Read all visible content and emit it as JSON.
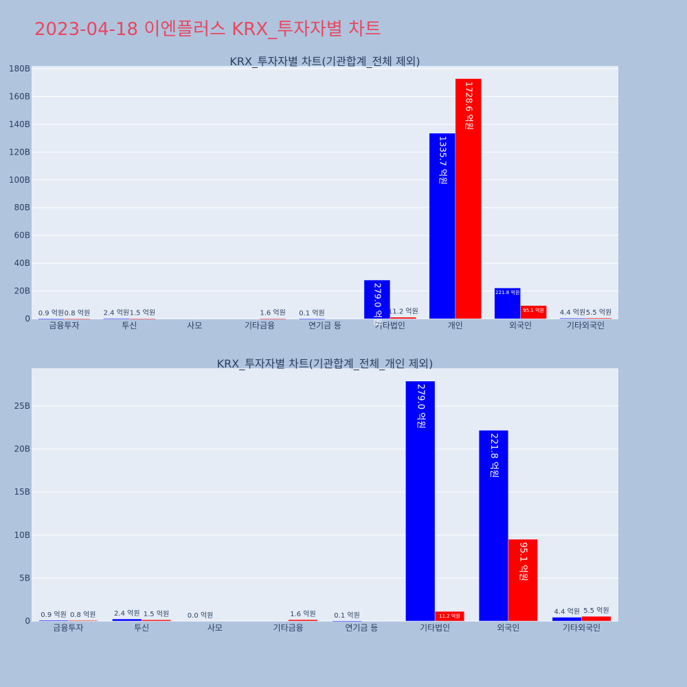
{
  "page_title": "2023-04-18 이엔플러스 KRX_투자자별 차트",
  "colors": {
    "background": "#b0c4de",
    "plot_bg": "#e5ecf6",
    "grid": "#ffffff",
    "title": "#e8475f",
    "text": "#2a3f5f"
  },
  "chart_data": [
    {
      "type": "bar",
      "title": "KRX_투자자별 차트(기관합계_전체 제외)",
      "categories": [
        "금융투자",
        "투신",
        "사모",
        "기타금융",
        "연기금 등",
        "기타법인",
        "개인",
        "외국인",
        "기타외국인"
      ],
      "series": [
        {
          "color": "#0000ff",
          "values": [
            90000000,
            240000000,
            0,
            0,
            10000000,
            27900000000,
            133570000000,
            22180000000,
            440000000
          ],
          "labels": [
            "0.9 억원",
            "2.4 억원",
            "",
            "",
            "0.1 억원",
            "279.0 억원",
            "1335.7 억원",
            "221.8 억원",
            "4.4 억원"
          ]
        },
        {
          "color": "#ff0000",
          "values": [
            80000000,
            150000000,
            0,
            160000000,
            0,
            1120000000,
            172860000000,
            9510000000,
            550000000
          ],
          "labels": [
            "0.8 억원",
            "1.5 억원",
            "",
            "1.6 억원",
            "",
            "11.2 억원",
            "1728.6 억원",
            "95.1 억원",
            "5.5 억원"
          ]
        }
      ],
      "yticks": [
        "0",
        "20B",
        "40B",
        "60B",
        "80B",
        "100B",
        "120B",
        "140B",
        "160B",
        "180B"
      ],
      "ytick_values": [
        0,
        20000000000,
        40000000000,
        60000000000,
        80000000000,
        100000000000,
        120000000000,
        140000000000,
        160000000000,
        180000000000
      ],
      "ylim": [
        0,
        182000000000
      ],
      "grid": true,
      "legend": "none"
    },
    {
      "type": "bar",
      "title": "KRX_투자자별 차트(기관합계_전체_개인 제외)",
      "categories": [
        "금융투자",
        "투신",
        "사모",
        "기타금융",
        "연기금 등",
        "기타법인",
        "외국인",
        "기타외국인"
      ],
      "series": [
        {
          "color": "#0000ff",
          "values": [
            90000000,
            240000000,
            0,
            0,
            10000000,
            27900000000,
            22180000000,
            440000000
          ],
          "labels": [
            "0.9 억원",
            "2.4 억원",
            "0.0 억원",
            "",
            "0.1 억원",
            "279.0 억원",
            "221.8 억원",
            "4.4 억원"
          ]
        },
        {
          "color": "#ff0000",
          "values": [
            80000000,
            150000000,
            0,
            160000000,
            0,
            1120000000,
            9510000000,
            550000000
          ],
          "labels": [
            "0.8 억원",
            "1.5 억원",
            "",
            "1.6 억원",
            "",
            "11.2 억원",
            "95.1 억원",
            "5.5 억원"
          ]
        }
      ],
      "yticks": [
        "0",
        "5B",
        "10B",
        "15B",
        "20B",
        "25B"
      ],
      "ytick_values": [
        0,
        5000000000,
        10000000000,
        15000000000,
        20000000000,
        25000000000
      ],
      "ylim": [
        0,
        29400000000
      ],
      "grid": true,
      "legend": "none"
    }
  ]
}
